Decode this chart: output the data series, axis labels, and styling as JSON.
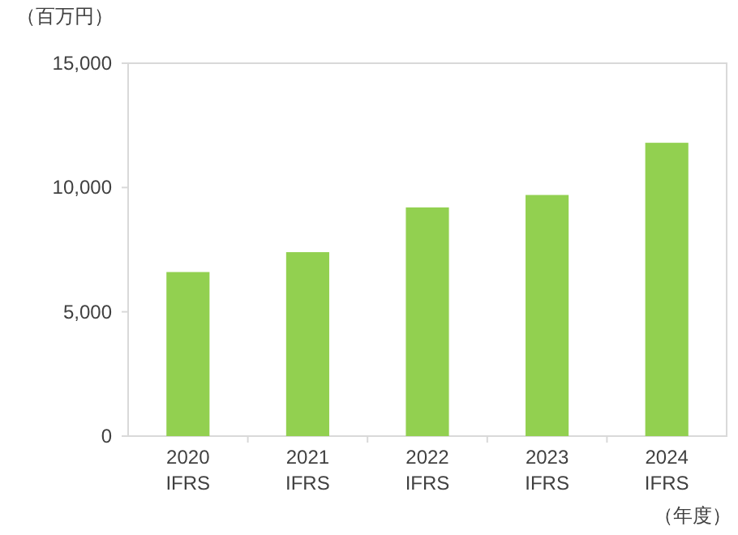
{
  "chart_data": {
    "type": "bar",
    "ylabel": "（百万円）",
    "xlabel": "（年度）",
    "categories": [
      "2020\nIFRS",
      "2021\nIFRS",
      "2022\nIFRS",
      "2023\nIFRS",
      "2024\nIFRS"
    ],
    "values": [
      6600,
      7400,
      9200,
      9700,
      11800
    ],
    "color": "#92d050",
    "ylim": [
      0,
      15000
    ],
    "yticks": [
      {
        "value": 0,
        "label": "0"
      },
      {
        "value": 5000,
        "label": "5,000"
      },
      {
        "value": 10000,
        "label": "10,000"
      },
      {
        "value": 15000,
        "label": "15,000"
      }
    ],
    "grid": false
  }
}
